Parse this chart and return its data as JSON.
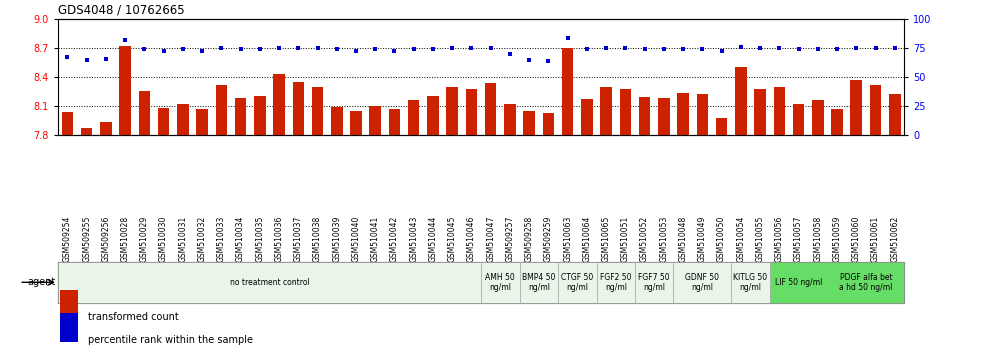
{
  "title": "GDS4048 / 10762665",
  "ylim_left": [
    7.8,
    9.0
  ],
  "ylim_right": [
    0,
    100
  ],
  "yticks_left": [
    7.8,
    8.1,
    8.4,
    8.7,
    9.0
  ],
  "yticks_right": [
    0,
    25,
    50,
    75,
    100
  ],
  "bar_color": "#cc2200",
  "dot_color": "#0000cc",
  "categories": [
    "GSM509254",
    "GSM509255",
    "GSM509256",
    "GSM510028",
    "GSM510029",
    "GSM510030",
    "GSM510031",
    "GSM510032",
    "GSM510033",
    "GSM510034",
    "GSM510035",
    "GSM510036",
    "GSM510037",
    "GSM510038",
    "GSM510039",
    "GSM510040",
    "GSM510041",
    "GSM510042",
    "GSM510043",
    "GSM510044",
    "GSM510045",
    "GSM510046",
    "GSM510047",
    "GSM509257",
    "GSM509258",
    "GSM509259",
    "GSM510063",
    "GSM510064",
    "GSM510065",
    "GSM510051",
    "GSM510052",
    "GSM510053",
    "GSM510048",
    "GSM510049",
    "GSM510050",
    "GSM510054",
    "GSM510055",
    "GSM510056",
    "GSM510057",
    "GSM510058",
    "GSM510059",
    "GSM510060",
    "GSM510061",
    "GSM510062"
  ],
  "bar_values": [
    8.04,
    7.87,
    7.93,
    8.72,
    8.25,
    8.08,
    8.12,
    8.07,
    8.32,
    8.18,
    8.2,
    8.43,
    8.35,
    8.3,
    8.09,
    8.05,
    8.1,
    8.07,
    8.16,
    8.2,
    8.3,
    8.28,
    8.34,
    8.12,
    8.05,
    8.02,
    8.7,
    8.17,
    8.3,
    8.28,
    8.19,
    8.18,
    8.23,
    8.22,
    7.97,
    8.5,
    8.28,
    8.3,
    8.12,
    8.16,
    8.07,
    8.37,
    8.32,
    8.22
  ],
  "dot_values": [
    67,
    65,
    66,
    82,
    74,
    73,
    74,
    73,
    75,
    74,
    74,
    75,
    75,
    75,
    74,
    73,
    74,
    73,
    74,
    74,
    75,
    75,
    75,
    70,
    65,
    64,
    84,
    74,
    75,
    75,
    74,
    74,
    74,
    74,
    73,
    76,
    75,
    75,
    74,
    74,
    74,
    75,
    75,
    75
  ],
  "agent_groups": [
    {
      "label": "no treatment control",
      "start": 0,
      "end": 22,
      "color": "#e8f5e8",
      "bright": false
    },
    {
      "label": "AMH 50\nng/ml",
      "start": 22,
      "end": 24,
      "color": "#e8f5e8",
      "bright": false
    },
    {
      "label": "BMP4 50\nng/ml",
      "start": 24,
      "end": 26,
      "color": "#e8f5e8",
      "bright": false
    },
    {
      "label": "CTGF 50\nng/ml",
      "start": 26,
      "end": 28,
      "color": "#e8f5e8",
      "bright": false
    },
    {
      "label": "FGF2 50\nng/ml",
      "start": 28,
      "end": 30,
      "color": "#e8f5e8",
      "bright": false
    },
    {
      "label": "FGF7 50\nng/ml",
      "start": 30,
      "end": 32,
      "color": "#e8f5e8",
      "bright": false
    },
    {
      "label": "GDNF 50\nng/ml",
      "start": 32,
      "end": 35,
      "color": "#e8f5e8",
      "bright": false
    },
    {
      "label": "KITLG 50\nng/ml",
      "start": 35,
      "end": 37,
      "color": "#e8f5e8",
      "bright": false
    },
    {
      "label": "LIF 50 ng/ml",
      "start": 37,
      "end": 40,
      "color": "#66dd66",
      "bright": true
    },
    {
      "label": "PDGF alfa bet\na hd 50 ng/ml",
      "start": 40,
      "end": 44,
      "color": "#66dd66",
      "bright": true
    }
  ],
  "legend_items": [
    {
      "label": "transformed count",
      "color": "#cc2200"
    },
    {
      "label": "percentile rank within the sample",
      "color": "#0000cc"
    }
  ],
  "hgrid_lines": [
    8.1,
    8.4,
    8.7
  ],
  "fig_width": 9.96,
  "fig_height": 3.54,
  "dpi": 100
}
